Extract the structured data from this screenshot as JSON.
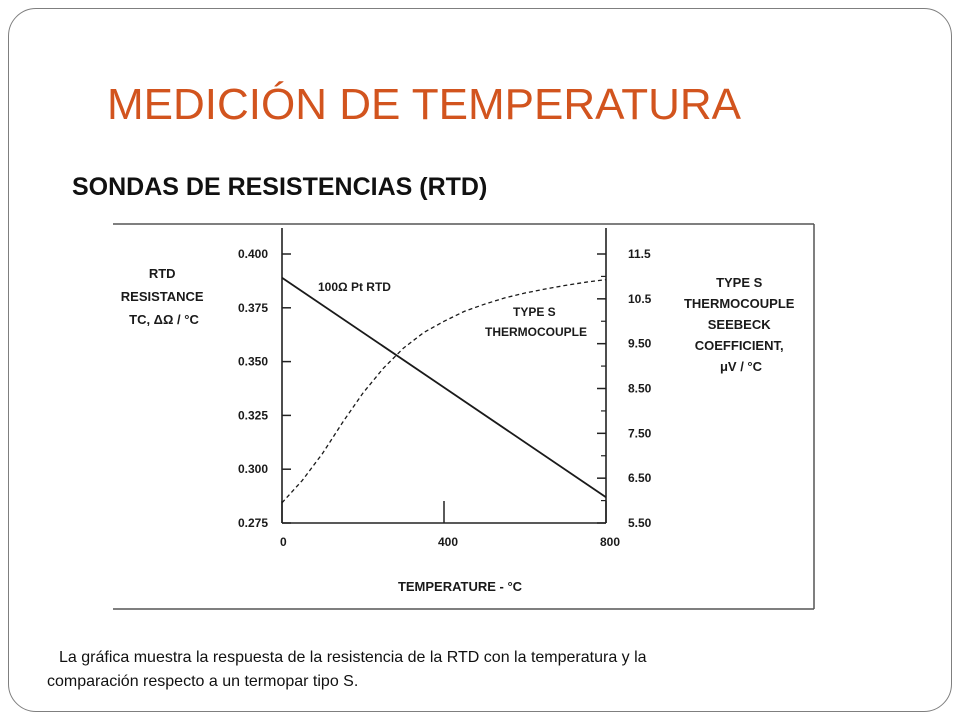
{
  "slide": {
    "title": "MEDICIÓN DE TEMPERATURA",
    "subtitle": "SONDAS DE RESISTENCIAS  (RTD)",
    "caption_line1": "La gráfica muestra la respuesta de la resistencia de la RTD con la temperatura y la",
    "caption_line2": "comparación  respecto a un termopar tipo S.",
    "title_color": "#d2541e"
  },
  "chart_data": {
    "type": "line",
    "xlabel": "TEMPERATURE - °C",
    "x_ticks": [
      "0",
      "400",
      "800"
    ],
    "xlim": [
      0,
      800
    ],
    "ylabel_left": [
      "RTD",
      "RESISTANCE",
      "TC, ΔΩ / °C"
    ],
    "y_left_ticks": [
      "0.400",
      "0.375",
      "0.350",
      "0.325",
      "0.300",
      "0.275"
    ],
    "ylim_left": [
      0.275,
      0.4
    ],
    "ylabel_right": [
      "TYPE S",
      "THERMOCOUPLE",
      "SEEBECK",
      "COEFFICIENT,",
      "μV / °C"
    ],
    "y_right_ticks": [
      "11.5",
      "10.5",
      "9.50",
      "8.50",
      "7.50",
      "6.50",
      "5.50"
    ],
    "ylim_right": [
      5.5,
      11.5
    ],
    "grid": false,
    "series": [
      {
        "name": "100Ω  Pt RTD",
        "label_lines": [
          "100Ω  Pt RTD"
        ],
        "axis": "left",
        "style": "solid",
        "x": [
          0,
          800
        ],
        "y": [
          0.389,
          0.287
        ]
      },
      {
        "name": "TYPE S THERMOCOUPLE",
        "label_lines": [
          "TYPE S",
          "THERMOCOUPLE"
        ],
        "axis": "right",
        "style": "dashed",
        "x": [
          0,
          50,
          100,
          150,
          200,
          250,
          300,
          350,
          400,
          450,
          500,
          550,
          600,
          650,
          700,
          750,
          800
        ],
        "y": [
          5.95,
          6.45,
          7.05,
          7.75,
          8.4,
          8.95,
          9.4,
          9.75,
          10.0,
          10.22,
          10.38,
          10.52,
          10.63,
          10.72,
          10.8,
          10.87,
          10.93
        ]
      }
    ]
  }
}
